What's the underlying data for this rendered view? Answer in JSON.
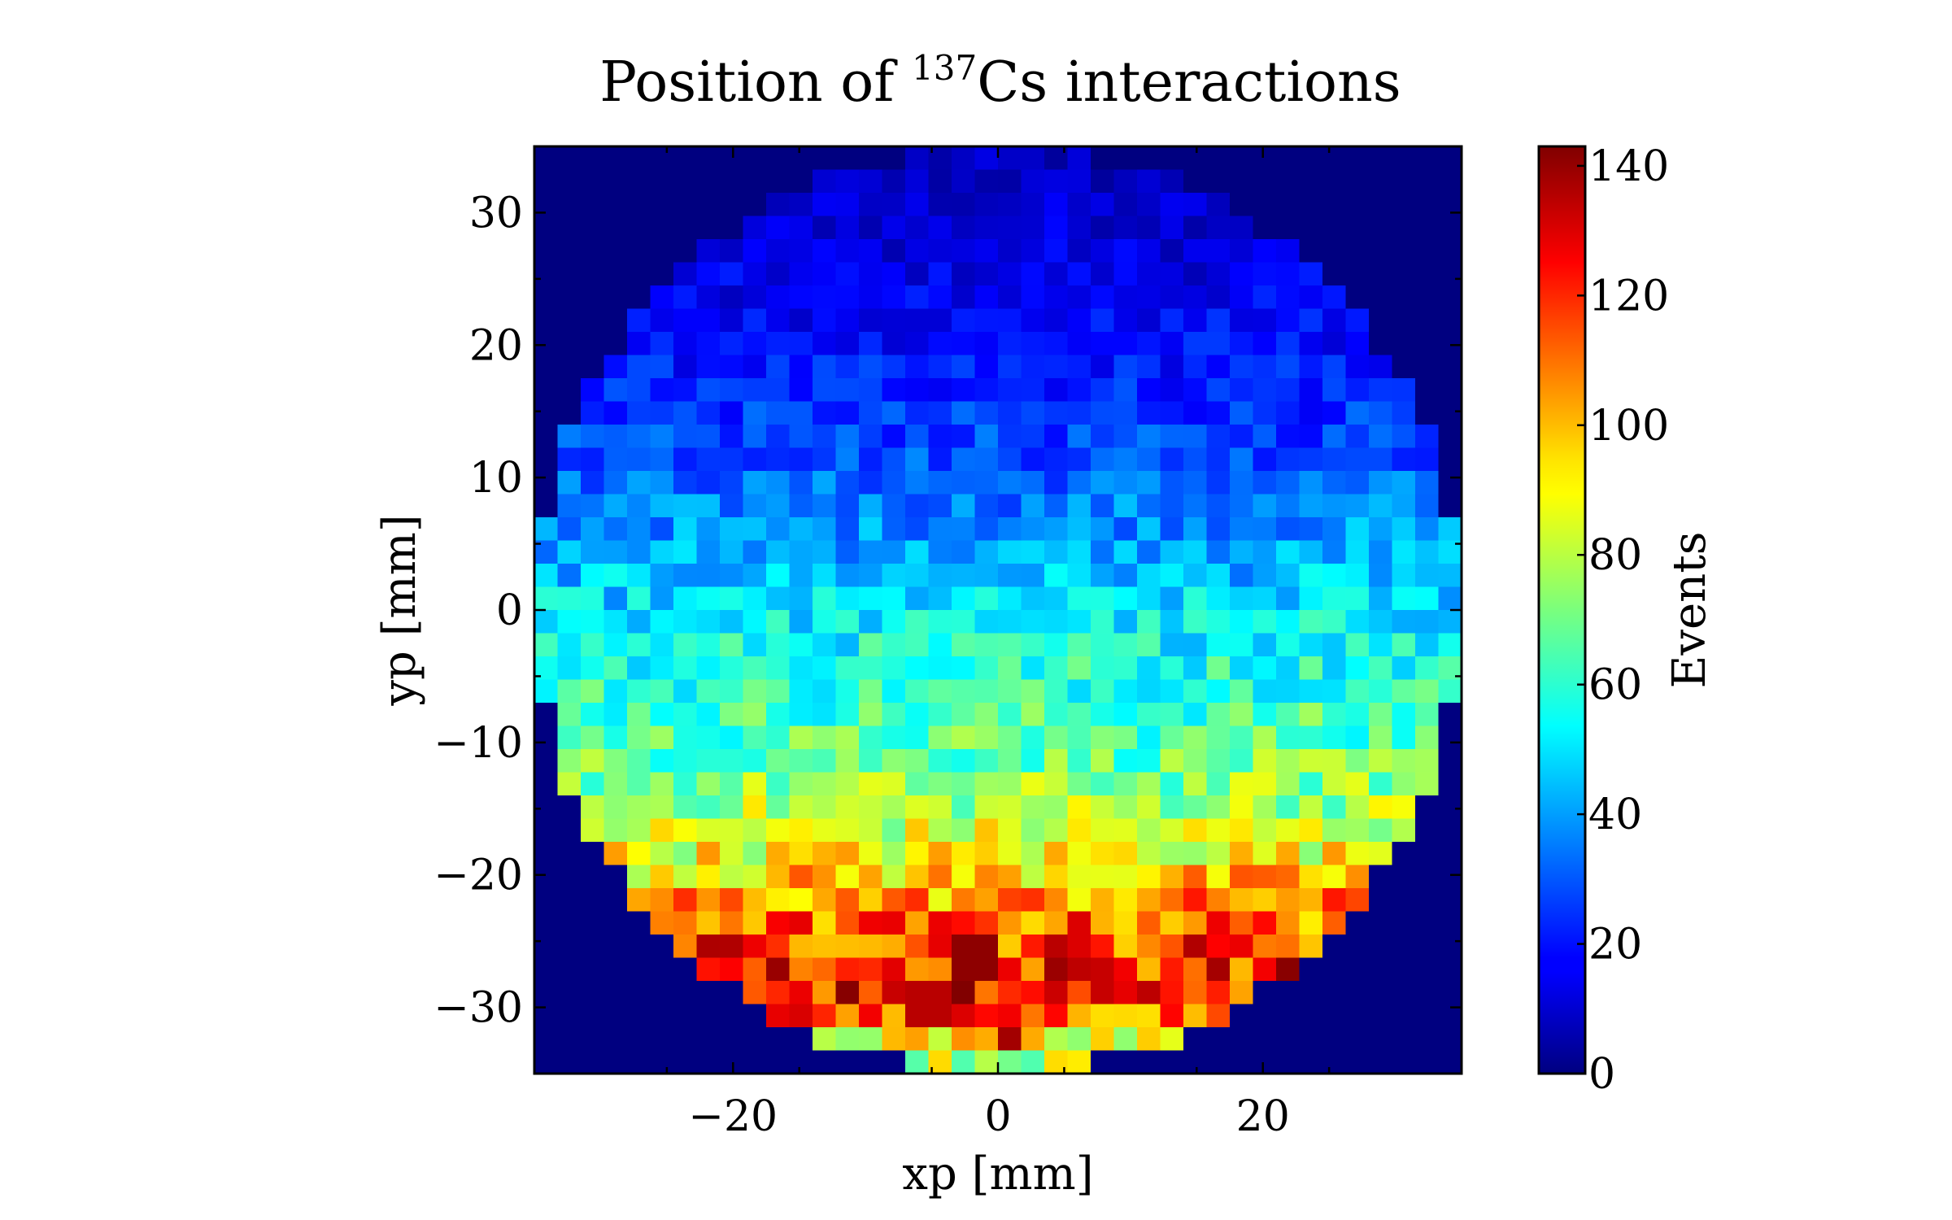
{
  "chart_data": {
    "type": "heatmap",
    "title": {
      "prefix": "Position of ",
      "superscript": "137",
      "suffix": "Cs interactions"
    },
    "xlabel": "xp [mm]",
    "ylabel": "yp [mm]",
    "xlim": [
      -35,
      35
    ],
    "ylim": [
      -35,
      35
    ],
    "bin_width_mm": 1.75,
    "detector_radius_mm": 35,
    "x_ticks": [
      {
        "value": -20,
        "label": "−20"
      },
      {
        "value": 0,
        "label": "0"
      },
      {
        "value": 20,
        "label": "20"
      }
    ],
    "y_ticks": [
      {
        "value": 30,
        "label": "30"
      },
      {
        "value": 20,
        "label": "20"
      },
      {
        "value": 10,
        "label": "10"
      },
      {
        "value": 0,
        "label": "0"
      },
      {
        "value": -10,
        "label": "−10"
      },
      {
        "value": -20,
        "label": "−20"
      },
      {
        "value": -30,
        "label": "−30"
      }
    ],
    "colorbar": {
      "label": "Events",
      "colormap": "jet",
      "range": [
        0,
        143
      ],
      "ticks": [
        {
          "value": 0,
          "label": "0"
        },
        {
          "value": 20,
          "label": "20"
        },
        {
          "value": 40,
          "label": "40"
        },
        {
          "value": 60,
          "label": "60"
        },
        {
          "value": 80,
          "label": "80"
        },
        {
          "value": 100,
          "label": "100"
        },
        {
          "value": 120,
          "label": "120"
        },
        {
          "value": 140,
          "label": "140"
        }
      ]
    },
    "row_y_centers": [
      33.25,
      29.75,
      26.25,
      22.75,
      19.25,
      15.75,
      12.25,
      8.75,
      5.25,
      1.75,
      -1.75,
      -5.25,
      -8.75,
      -12.25,
      -15.75,
      -19.25,
      -22.75,
      -26.25,
      -29.75,
      -33.25
    ],
    "row_mean_events": [
      8,
      12,
      14,
      17,
      20,
      24,
      28,
      34,
      40,
      46,
      54,
      60,
      64,
      70,
      80,
      92,
      108,
      120,
      124,
      80
    ],
    "hotspots": [
      {
        "x": -1.75,
        "y": -26.25,
        "events": 141
      },
      {
        "x": -5.25,
        "y": -30.1,
        "events": 135
      },
      {
        "x": 0.9,
        "y": -32.4,
        "events": 138
      },
      {
        "x": 8.0,
        "y": -28.4,
        "events": 133
      }
    ],
    "background_events": 0
  }
}
